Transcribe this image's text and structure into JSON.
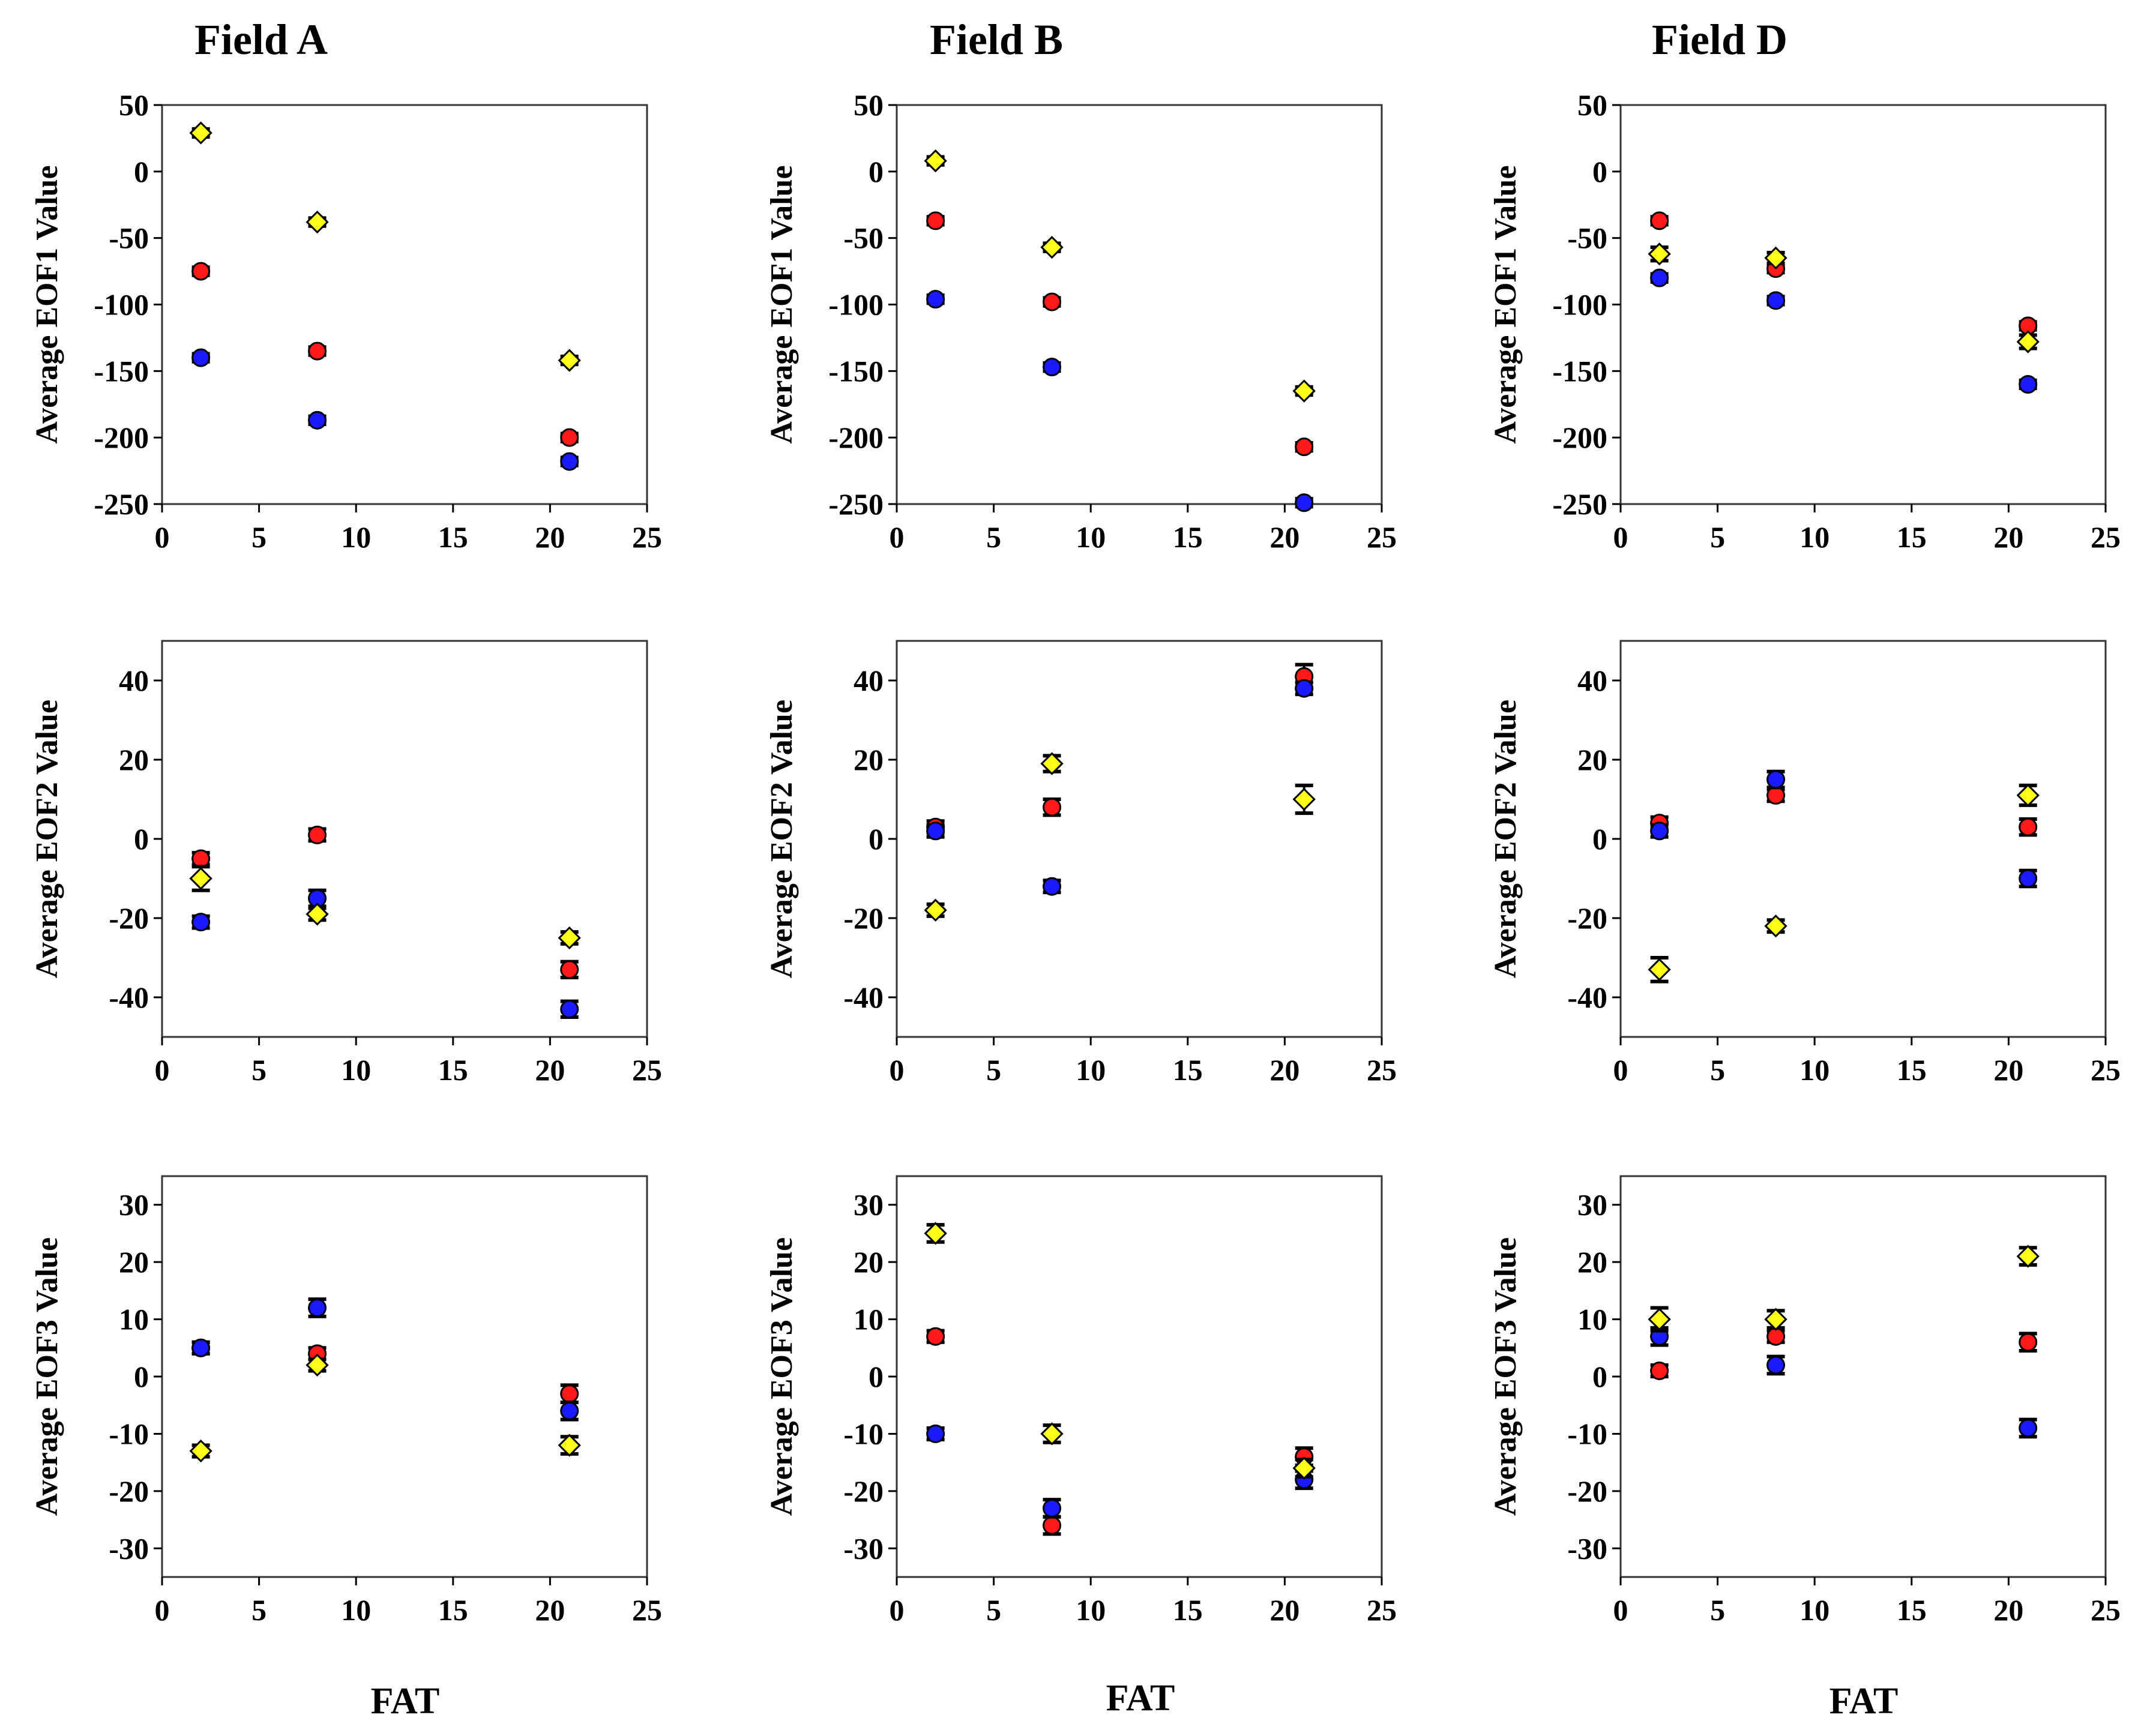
{
  "titles": [
    "Field A",
    "Field B",
    "Field D"
  ],
  "xlabel": "FAT",
  "series_colors": {
    "blue": "#1a1aff",
    "red": "#ff1a1a",
    "yellow": "#ffff1a"
  },
  "chart_data": [
    {
      "field": "Field A",
      "type": "scatter",
      "ylabel": "Average EOF1 Value",
      "xlim": [
        0,
        25
      ],
      "ylim": [
        -250,
        50
      ],
      "xticks": [
        0,
        5,
        10,
        15,
        20,
        25
      ],
      "yticks": [
        50,
        0,
        -50,
        -100,
        -150,
        -200,
        -250
      ],
      "series": [
        {
          "name": "blue",
          "marker": "circle",
          "points": [
            {
              "x": 2,
              "y": -140,
              "err": 3
            },
            {
              "x": 8,
              "y": -187,
              "err": 3
            },
            {
              "x": 21,
              "y": -218,
              "err": 3
            }
          ]
        },
        {
          "name": "red",
          "marker": "circle",
          "points": [
            {
              "x": 2,
              "y": -75,
              "err": 3
            },
            {
              "x": 8,
              "y": -135,
              "err": 3
            },
            {
              "x": 21,
              "y": -200,
              "err": 3
            }
          ]
        },
        {
          "name": "yellow",
          "marker": "diamond",
          "points": [
            {
              "x": 2,
              "y": 29,
              "err": 3
            },
            {
              "x": 8,
              "y": -38,
              "err": 3
            },
            {
              "x": 21,
              "y": -142,
              "err": 3
            }
          ]
        }
      ]
    },
    {
      "field": "Field B",
      "type": "scatter",
      "ylabel": "Average EOF1 Value",
      "xlim": [
        0,
        25
      ],
      "ylim": [
        -250,
        50
      ],
      "xticks": [
        0,
        5,
        10,
        15,
        20,
        25
      ],
      "yticks": [
        50,
        0,
        -50,
        -100,
        -150,
        -200,
        -250
      ],
      "series": [
        {
          "name": "blue",
          "marker": "circle",
          "points": [
            {
              "x": 2,
              "y": -96,
              "err": 3
            },
            {
              "x": 8,
              "y": -147,
              "err": 3
            },
            {
              "x": 21,
              "y": -249,
              "err": 3
            }
          ]
        },
        {
          "name": "red",
          "marker": "circle",
          "points": [
            {
              "x": 2,
              "y": -37,
              "err": 3
            },
            {
              "x": 8,
              "y": -98,
              "err": 3
            },
            {
              "x": 21,
              "y": -207,
              "err": 3
            }
          ]
        },
        {
          "name": "yellow",
          "marker": "diamond",
          "points": [
            {
              "x": 2,
              "y": 8,
              "err": 3
            },
            {
              "x": 8,
              "y": -57,
              "err": 3
            },
            {
              "x": 21,
              "y": -165,
              "err": 3
            }
          ]
        }
      ]
    },
    {
      "field": "Field D",
      "type": "scatter",
      "ylabel": "Average EOF1 Value",
      "xlim": [
        0,
        25
      ],
      "ylim": [
        -250,
        50
      ],
      "xticks": [
        0,
        5,
        10,
        15,
        20,
        25
      ],
      "yticks": [
        50,
        0,
        -50,
        -100,
        -150,
        -200,
        -250
      ],
      "series": [
        {
          "name": "blue",
          "marker": "circle",
          "points": [
            {
              "x": 2,
              "y": -80,
              "err": 3
            },
            {
              "x": 8,
              "y": -97,
              "err": 3
            },
            {
              "x": 21,
              "y": -160,
              "err": 3
            }
          ]
        },
        {
          "name": "red",
          "marker": "circle",
          "points": [
            {
              "x": 2,
              "y": -37,
              "err": 3
            },
            {
              "x": 8,
              "y": -73,
              "err": 3
            },
            {
              "x": 21,
              "y": -116,
              "err": 3
            }
          ]
        },
        {
          "name": "yellow",
          "marker": "diamond",
          "points": [
            {
              "x": 2,
              "y": -62,
              "err": 5
            },
            {
              "x": 8,
              "y": -65,
              "err": 4
            },
            {
              "x": 21,
              "y": -128,
              "err": 5
            }
          ]
        }
      ]
    },
    {
      "field": "Field A",
      "type": "scatter",
      "ylabel": "Average EOF2 Value",
      "xlim": [
        0,
        25
      ],
      "ylim": [
        -50,
        50
      ],
      "xticks": [
        0,
        5,
        10,
        15,
        20,
        25
      ],
      "yticks": [
        40,
        20,
        0,
        -20,
        -40
      ],
      "series": [
        {
          "name": "blue",
          "marker": "circle",
          "points": [
            {
              "x": 2,
              "y": -21,
              "err": 1.5
            },
            {
              "x": 8,
              "y": -15,
              "err": 2
            },
            {
              "x": 21,
              "y": -43,
              "err": 2
            }
          ]
        },
        {
          "name": "red",
          "marker": "circle",
          "points": [
            {
              "x": 2,
              "y": -5,
              "err": 1.5
            },
            {
              "x": 8,
              "y": 1,
              "err": 1.5
            },
            {
              "x": 21,
              "y": -33,
              "err": 2
            }
          ]
        },
        {
          "name": "yellow",
          "marker": "diamond",
          "points": [
            {
              "x": 2,
              "y": -10,
              "err": 3
            },
            {
              "x": 8,
              "y": -19,
              "err": 1.5
            },
            {
              "x": 21,
              "y": -25,
              "err": 1.5
            }
          ]
        }
      ]
    },
    {
      "field": "Field B",
      "type": "scatter",
      "ylabel": "Average EOF2 Value",
      "xlim": [
        0,
        25
      ],
      "ylim": [
        -50,
        50
      ],
      "xticks": [
        0,
        5,
        10,
        15,
        20,
        25
      ],
      "yticks": [
        40,
        20,
        0,
        -20,
        -40
      ],
      "series": [
        {
          "name": "blue",
          "marker": "circle",
          "points": [
            {
              "x": 2,
              "y": 2,
              "err": 1.5
            },
            {
              "x": 8,
              "y": -12,
              "err": 1.5
            },
            {
              "x": 21,
              "y": 38,
              "err": 1.5
            }
          ]
        },
        {
          "name": "red",
          "marker": "circle",
          "points": [
            {
              "x": 2,
              "y": 3,
              "err": 1.5
            },
            {
              "x": 8,
              "y": 8,
              "err": 2
            },
            {
              "x": 21,
              "y": 41,
              "err": 3
            }
          ]
        },
        {
          "name": "yellow",
          "marker": "diamond",
          "points": [
            {
              "x": 2,
              "y": -18,
              "err": 1.5
            },
            {
              "x": 8,
              "y": 19,
              "err": 2
            },
            {
              "x": 21,
              "y": 10,
              "err": 3.5
            }
          ]
        }
      ]
    },
    {
      "field": "Field D",
      "type": "scatter",
      "ylabel": "Average EOF2 Value",
      "xlim": [
        0,
        25
      ],
      "ylim": [
        -50,
        50
      ],
      "xticks": [
        0,
        5,
        10,
        15,
        20,
        25
      ],
      "yticks": [
        40,
        20,
        0,
        -20,
        -40
      ],
      "series": [
        {
          "name": "blue",
          "marker": "circle",
          "points": [
            {
              "x": 2,
              "y": 2,
              "err": 1.5
            },
            {
              "x": 8,
              "y": 15,
              "err": 2
            },
            {
              "x": 21,
              "y": -10,
              "err": 2
            }
          ]
        },
        {
          "name": "red",
          "marker": "circle",
          "points": [
            {
              "x": 2,
              "y": 4,
              "err": 1.5
            },
            {
              "x": 8,
              "y": 11,
              "err": 1.5
            },
            {
              "x": 21,
              "y": 3,
              "err": 2
            }
          ]
        },
        {
          "name": "yellow",
          "marker": "diamond",
          "points": [
            {
              "x": 2,
              "y": -33,
              "err": 3
            },
            {
              "x": 8,
              "y": -22,
              "err": 1.5
            },
            {
              "x": 21,
              "y": 11,
              "err": 2.5
            }
          ]
        }
      ]
    },
    {
      "field": "Field A",
      "type": "scatter",
      "ylabel": "Average EOF3 Value",
      "xlim": [
        0,
        25
      ],
      "ylim": [
        -35,
        35
      ],
      "xticks": [
        0,
        5,
        10,
        15,
        20,
        25
      ],
      "yticks": [
        30,
        20,
        10,
        0,
        -10,
        -20,
        -30
      ],
      "series": [
        {
          "name": "blue",
          "marker": "circle",
          "points": [
            {
              "x": 2,
              "y": 5,
              "err": 1
            },
            {
              "x": 8,
              "y": 12,
              "err": 1.5
            },
            {
              "x": 21,
              "y": -6,
              "err": 1.5
            }
          ]
        },
        {
          "name": "red",
          "marker": "circle",
          "points": [
            {
              "x": 2,
              "y": 5,
              "err": 1
            },
            {
              "x": 8,
              "y": 4,
              "err": 1
            },
            {
              "x": 21,
              "y": -3,
              "err": 1.5
            }
          ]
        },
        {
          "name": "yellow",
          "marker": "diamond",
          "points": [
            {
              "x": 2,
              "y": -13,
              "err": 1
            },
            {
              "x": 8,
              "y": 2,
              "err": 1
            },
            {
              "x": 21,
              "y": -12,
              "err": 1.5
            }
          ]
        }
      ]
    },
    {
      "field": "Field B",
      "type": "scatter",
      "ylabel": "Average EOF3 Value",
      "xlim": [
        0,
        25
      ],
      "ylim": [
        -35,
        35
      ],
      "xticks": [
        0,
        5,
        10,
        15,
        20,
        25
      ],
      "yticks": [
        30,
        20,
        10,
        0,
        -10,
        -20,
        -30
      ],
      "series": [
        {
          "name": "blue",
          "marker": "circle",
          "points": [
            {
              "x": 2,
              "y": -10,
              "err": 1
            },
            {
              "x": 8,
              "y": -23,
              "err": 1.5
            },
            {
              "x": 21,
              "y": -18,
              "err": 1.5
            }
          ]
        },
        {
          "name": "red",
          "marker": "circle",
          "points": [
            {
              "x": 2,
              "y": 7,
              "err": 1
            },
            {
              "x": 8,
              "y": -26,
              "err": 1.5
            },
            {
              "x": 21,
              "y": -14,
              "err": 1.5
            }
          ]
        },
        {
          "name": "yellow",
          "marker": "diamond",
          "points": [
            {
              "x": 2,
              "y": 25,
              "err": 1.5
            },
            {
              "x": 8,
              "y": -10,
              "err": 1.5
            },
            {
              "x": 21,
              "y": -16,
              "err": 1.5
            }
          ]
        }
      ]
    },
    {
      "field": "Field D",
      "type": "scatter",
      "ylabel": "Average EOF3 Value",
      "xlim": [
        0,
        25
      ],
      "ylim": [
        -35,
        35
      ],
      "xticks": [
        0,
        5,
        10,
        15,
        20,
        25
      ],
      "yticks": [
        30,
        20,
        10,
        0,
        -10,
        -20,
        -30
      ],
      "series": [
        {
          "name": "blue",
          "marker": "circle",
          "points": [
            {
              "x": 2,
              "y": 7,
              "err": 1.5
            },
            {
              "x": 8,
              "y": 2,
              "err": 1.5
            },
            {
              "x": 21,
              "y": -9,
              "err": 1.5
            }
          ]
        },
        {
          "name": "red",
          "marker": "circle",
          "points": [
            {
              "x": 2,
              "y": 1,
              "err": 1
            },
            {
              "x": 8,
              "y": 7,
              "err": 1
            },
            {
              "x": 21,
              "y": 6,
              "err": 1.5
            }
          ]
        },
        {
          "name": "yellow",
          "marker": "diamond",
          "points": [
            {
              "x": 2,
              "y": 10,
              "err": 2
            },
            {
              "x": 8,
              "y": 10,
              "err": 1.5
            },
            {
              "x": 21,
              "y": 21,
              "err": 1.5
            }
          ]
        }
      ]
    }
  ]
}
